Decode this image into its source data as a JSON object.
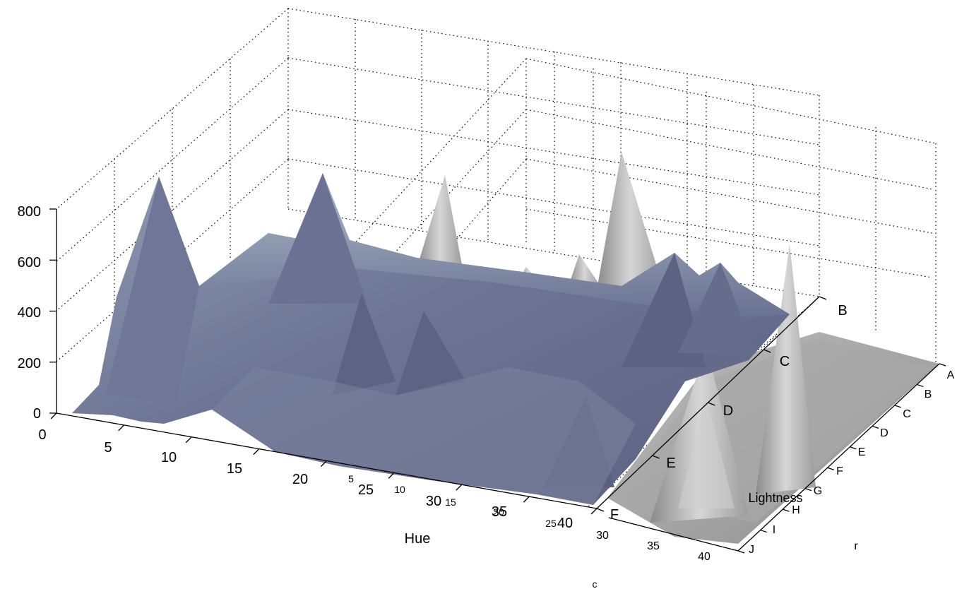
{
  "chart_data": [
    {
      "type": "surface",
      "title": "",
      "zlabel": "",
      "zlim": [
        0,
        800
      ],
      "z_ticks": [
        "0",
        "200",
        "400",
        "600",
        "800"
      ],
      "x_ticks": [
        "0",
        "5",
        "10",
        "15",
        "20",
        "25",
        "30",
        "35",
        "40"
      ],
      "y_ticks": [
        "B",
        "C",
        "D",
        "E",
        "F"
      ],
      "xlabel": "Hue",
      "surface_color": "#6b6f8d",
      "peaks": [
        {
          "hue": 7,
          "value": 770
        },
        {
          "hue": 19,
          "value": 740
        },
        {
          "hue": 21,
          "value": 300
        },
        {
          "hue": 25,
          "value": 300
        },
        {
          "hue": 36,
          "value": 330
        },
        {
          "hue": 38,
          "value": 330
        }
      ]
    },
    {
      "type": "surface",
      "title": "",
      "secondary_x_ticks": [
        "5",
        "10",
        "15",
        "20",
        "25",
        "30",
        "35",
        "40"
      ],
      "c_ticks": [
        "5",
        "10",
        "15",
        "25",
        "30",
        "35",
        "40"
      ],
      "r_ticks": [
        "A",
        "B",
        "C",
        "D",
        "E",
        "F",
        "G",
        "H",
        "I",
        "J"
      ],
      "xlabel": "c",
      "ylabel": "r",
      "zlabel": "Lightness",
      "surface_color": "#a4a4a4"
    }
  ]
}
